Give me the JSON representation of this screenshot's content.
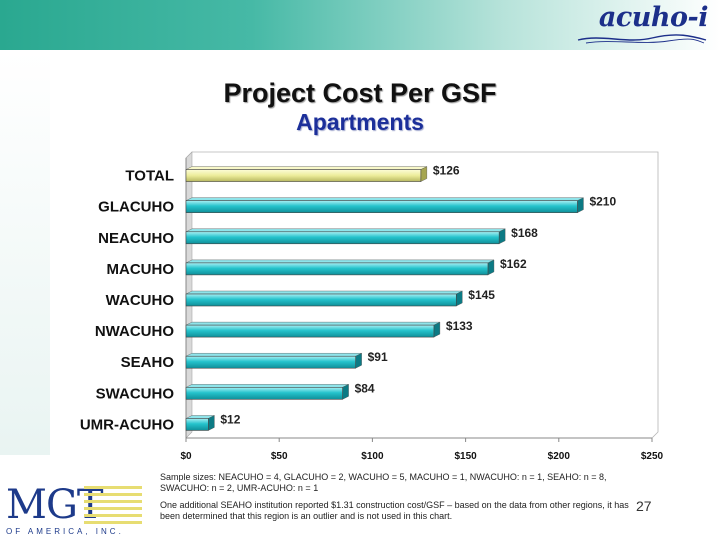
{
  "title": "Project Cost Per GSF",
  "subtitle": "Apartments",
  "brand": {
    "logo_text": "acuho-i"
  },
  "footer": {
    "logo_text": "MGT",
    "logo_subtext": "OF AMERICA, INC."
  },
  "notes": {
    "sample_sizes": "Sample sizes: NEACUHO = 4, GLACUHO = 2, WACUHO = 5,  MACUHO = 1, NWACUHO: n = 1, SEAHO: n = 8, SWACUHO: n = 2, UMR-ACUHO: n = 1",
    "outlier": "One additional SEAHO institution reported $1.31 construction cost/GSF – based on the data from other regions, it has been determined that this region is an outlier and is not used in this chart."
  },
  "page_number": "27",
  "colors": {
    "bar_regions": "#25c3cc",
    "bar_total": "#ecec9a",
    "title": "#111111",
    "subtitle": "#1c2f9a"
  },
  "chart_data": {
    "type": "bar",
    "orientation": "horizontal",
    "title": "Project Cost Per GSF",
    "subtitle": "Apartments",
    "categories": [
      "TOTAL",
      "GLACUHO",
      "NEACUHO",
      "MACUHO",
      "WACUHO",
      "NWACUHO",
      "SEAHO",
      "SWACUHO",
      "UMR-ACUHO"
    ],
    "values": [
      126,
      210,
      168,
      162,
      145,
      133,
      91,
      84,
      12
    ],
    "data_labels": [
      "$126",
      "$210",
      "$168",
      "$162",
      "$145",
      "$133",
      "$91",
      "$84",
      "$12"
    ],
    "x_ticks": [
      0,
      50,
      100,
      150,
      200,
      250
    ],
    "x_tick_labels": [
      "$0",
      "$50",
      "$100",
      "$150",
      "$200",
      "$250"
    ],
    "xlim": [
      0,
      250
    ],
    "grid": false,
    "legend": "none",
    "highlight_category": "TOTAL"
  }
}
